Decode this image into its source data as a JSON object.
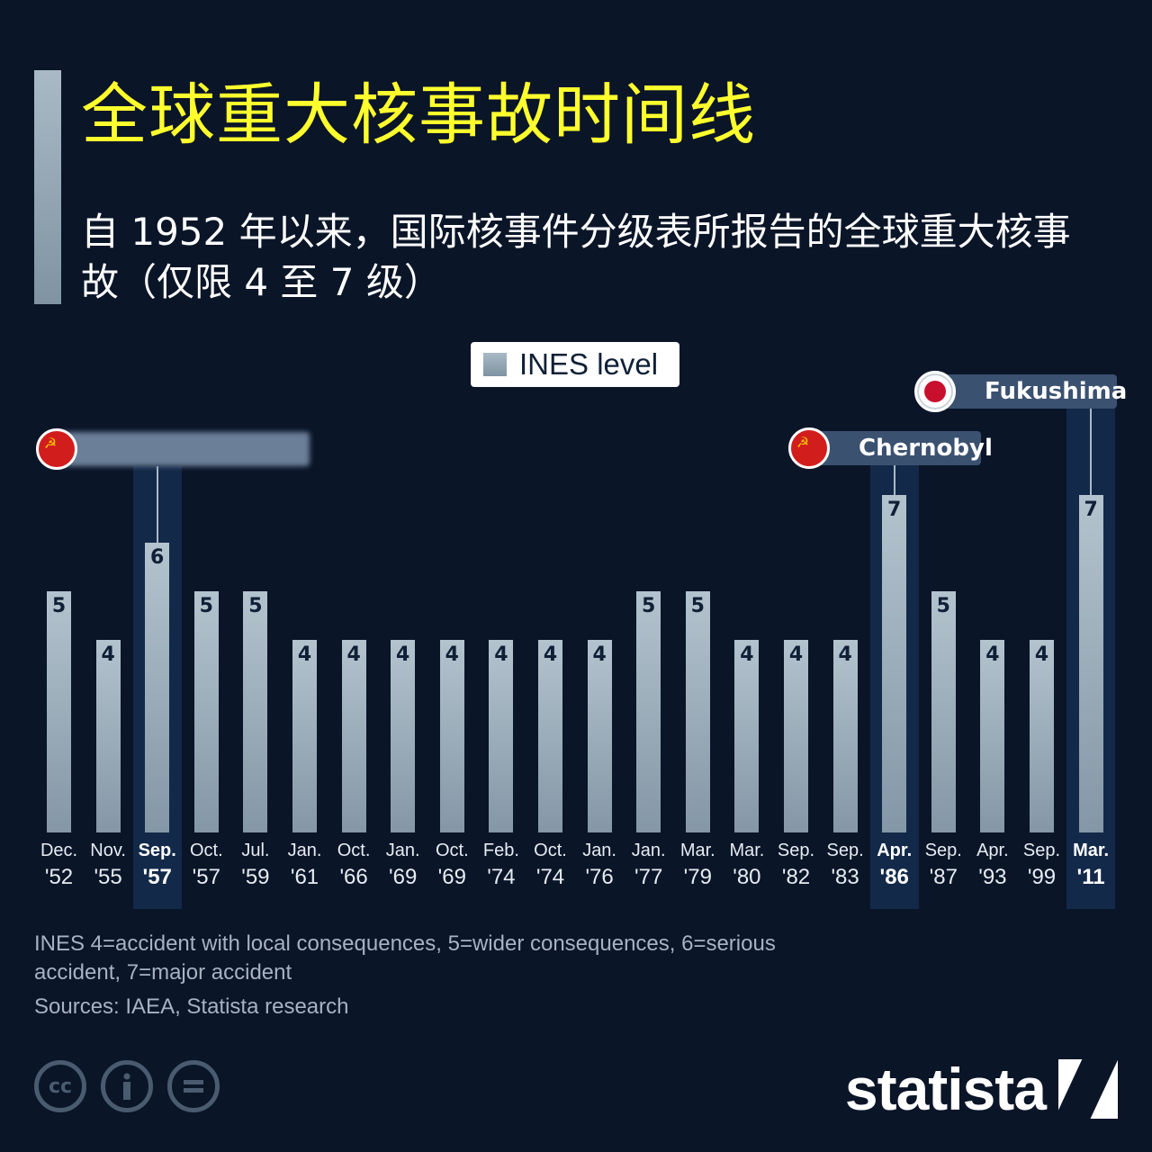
{
  "header": {
    "title": "全球重大核事故时间线",
    "subtitle": "自 1952 年以来，国际核事件分级表所报告的全球重大核事故（仅限 4 至 7 级）"
  },
  "legend": {
    "label": "INES level"
  },
  "callouts": [
    {
      "label": "",
      "flag": "ussr",
      "blurred": true,
      "bar_index": 2
    },
    {
      "label": "Chernobyl",
      "flag": "ussr",
      "blurred": false,
      "bar_index": 17
    },
    {
      "label": "Fukushima",
      "flag": "japan",
      "blurred": false,
      "bar_index": 21
    }
  ],
  "chart_data": {
    "type": "bar",
    "title": "全球重大核事故时间线",
    "subtitle": "自 1952 年以来，国际核事件分级表所报告的全球重大核事故（仅限 4 至 7 级）",
    "xlabel": "",
    "ylabel": "INES level",
    "legend": [
      "INES level"
    ],
    "grid": false,
    "categories": [
      "Dec. '52",
      "Nov. '55",
      "Sep. '57",
      "Oct. '57",
      "Jul. '59",
      "Jan. '61",
      "Oct. '66",
      "Jan. '69",
      "Oct. '69",
      "Feb. '74",
      "Oct. '74",
      "Jan. '76",
      "Jan. '77",
      "Mar. '79",
      "Mar. '80",
      "Sep. '82",
      "Sep. '83",
      "Apr. '86",
      "Sep. '87",
      "Apr. '93",
      "Sep. '99",
      "Mar. '11"
    ],
    "values": [
      5,
      4,
      6,
      5,
      5,
      4,
      4,
      4,
      4,
      4,
      4,
      4,
      5,
      5,
      4,
      4,
      4,
      7,
      5,
      4,
      4,
      7
    ],
    "highlighted": [
      "Sep. '57",
      "Apr. '86",
      "Mar. '11"
    ],
    "annotations": [
      "Chernobyl (Apr. '86)",
      "Fukushima (Mar. '11)"
    ],
    "ylim": [
      0,
      7
    ]
  },
  "xlabels": [
    {
      "m": "Dec.",
      "y": "'52"
    },
    {
      "m": "Nov.",
      "y": "'55"
    },
    {
      "m": "Sep.",
      "y": "'57"
    },
    {
      "m": "Oct.",
      "y": "'57"
    },
    {
      "m": "Jul.",
      "y": "'59"
    },
    {
      "m": "Jan.",
      "y": "'61"
    },
    {
      "m": "Oct.",
      "y": "'66"
    },
    {
      "m": "Jan.",
      "y": "'69"
    },
    {
      "m": "Oct.",
      "y": "'69"
    },
    {
      "m": "Feb.",
      "y": "'74"
    },
    {
      "m": "Oct.",
      "y": "'74"
    },
    {
      "m": "Jan.",
      "y": "'76"
    },
    {
      "m": "Jan.",
      "y": "'77"
    },
    {
      "m": "Mar.",
      "y": "'79"
    },
    {
      "m": "Mar.",
      "y": "'80"
    },
    {
      "m": "Sep.",
      "y": "'82"
    },
    {
      "m": "Sep.",
      "y": "'83"
    },
    {
      "m": "Apr.",
      "y": "'86"
    },
    {
      "m": "Sep.",
      "y": "'87"
    },
    {
      "m": "Apr.",
      "y": "'93"
    },
    {
      "m": "Sep.",
      "y": "'99"
    },
    {
      "m": "Mar.",
      "y": "'11"
    }
  ],
  "footer": {
    "note": "INES 4=accident with local consequences, 5=wider consequences, 6=serious accident, 7=major accident",
    "sources": "Sources: IAEA, Statista research",
    "license_icons": [
      "cc-icon",
      "attribution-icon",
      "no-derivatives-icon"
    ],
    "brand": "statista"
  },
  "colors": {
    "background": "#0a1528",
    "title": "#ffff2e",
    "bar_top": "#b3c3ce",
    "bar_bottom": "#8497a6",
    "highlight_band": "#13294a",
    "callout_bg": "#3b5170"
  }
}
